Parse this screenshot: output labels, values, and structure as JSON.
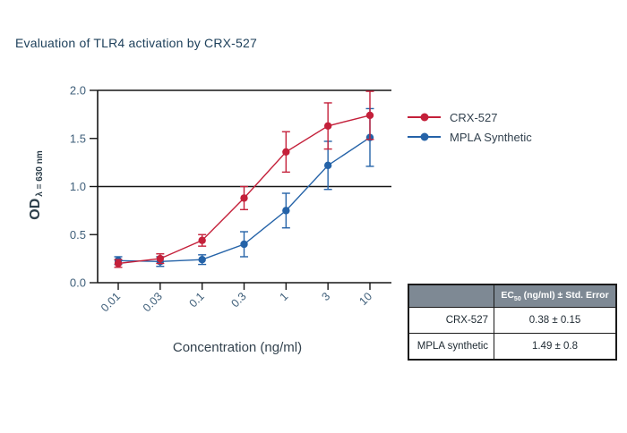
{
  "page": {
    "title": "Evaluation of TLR4 activation by CRX-527"
  },
  "colors": {
    "crx527": "#c4203a",
    "mpla": "#2563a8",
    "axis": "#161616",
    "tick_text": "#3f5f7a",
    "title_text": "#1c3f5a",
    "table_header_bg": "#7e8994"
  },
  "chart_data": {
    "type": "line",
    "x_categories": [
      "0.01",
      "0.03",
      "0.1",
      "0.3",
      "1",
      "3",
      "10"
    ],
    "xlabel": "Concentration (ng/ml)",
    "ylabel_main": "OD",
    "ylabel_sub": "λ = 630 nm",
    "ylim": [
      0,
      2
    ],
    "yticks": [
      "0.0",
      "0.5",
      "1.0",
      "1.5",
      "2.0"
    ],
    "reference_line_y": 1.0,
    "grid": "off",
    "legend_position": "right",
    "series": [
      {
        "name": "CRX-527",
        "color": "#c4203a",
        "values": [
          0.2,
          0.25,
          0.44,
          0.88,
          1.36,
          1.63,
          1.74
        ],
        "errors": [
          0.04,
          0.05,
          0.06,
          0.12,
          0.21,
          0.24,
          0.25
        ]
      },
      {
        "name": "MPLA Synthetic",
        "color": "#2563a8",
        "values": [
          0.23,
          0.22,
          0.24,
          0.4,
          0.75,
          1.22,
          1.51
        ],
        "errors": [
          0.04,
          0.05,
          0.05,
          0.13,
          0.18,
          0.25,
          0.3
        ]
      }
    ]
  },
  "legend": {
    "items": [
      {
        "label": "CRX-527",
        "color": "#c4203a"
      },
      {
        "label": "MPLA Synthetic",
        "color": "#2563a8"
      }
    ]
  },
  "table": {
    "header": {
      "col1": "",
      "col2_prefix": "EC",
      "col2_sub": "50",
      "col2_suffix": " (ng/ml) ± Std. Error"
    },
    "rows": [
      {
        "label": "CRX-527",
        "value": "0.38 ± 0.15"
      },
      {
        "label": "MPLA synthetic",
        "value": "1.49 ± 0.8"
      }
    ]
  }
}
